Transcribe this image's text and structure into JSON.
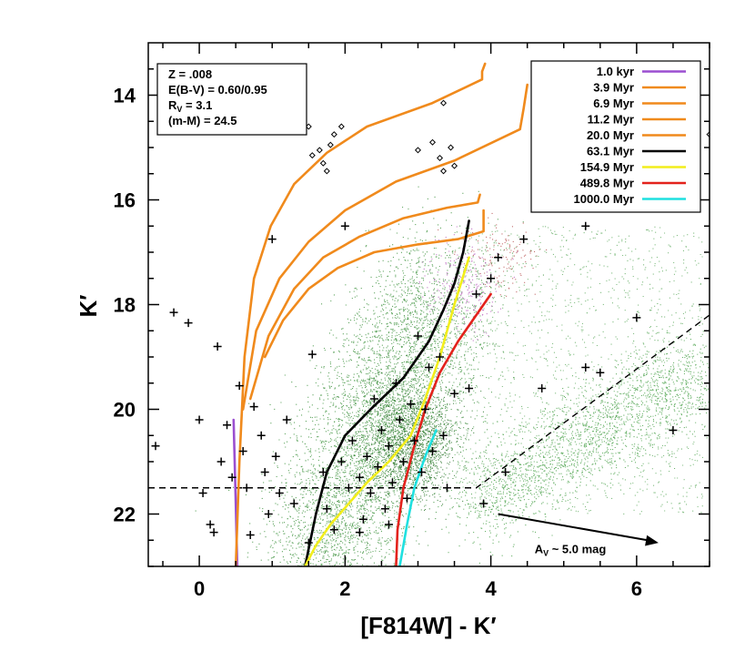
{
  "chart_data": {
    "type": "scatter",
    "title": "",
    "xlabel": "[F814W] - K′",
    "ylabel": "K′",
    "xlim": [
      -0.7,
      7.0
    ],
    "ylim": [
      23.0,
      13.0
    ],
    "y_inverted": true,
    "x_ticks": [
      0,
      2,
      4,
      6
    ],
    "y_ticks": [
      14,
      16,
      18,
      20,
      22
    ],
    "info_box": {
      "lines": [
        "Z = .008",
        "E(B-V) = 0.60/0.95",
        "R",
        "(m-M) = 24.5"
      ],
      "rv_sub": "V",
      "rv_value": " = 3.1"
    },
    "legend": {
      "position": "top-right",
      "entries": [
        {
          "label": "1.0 kyr",
          "color": "#9b4fd0"
        },
        {
          "label": "3.9 Myr",
          "color": "#f08a1c"
        },
        {
          "label": "6.9 Myr",
          "color": "#f08a1c"
        },
        {
          "label": "11.2 Myr",
          "color": "#f08a1c"
        },
        {
          "label": "20.0 Myr",
          "color": "#f08a1c"
        },
        {
          "label": "63.1 Myr",
          "color": "#000000"
        },
        {
          "label": "154.9 Myr",
          "color": "#f2ee1c"
        },
        {
          "label": "489.8 Myr",
          "color": "#e3221c"
        },
        {
          "label": "1000.0 Myr",
          "color": "#1fe0e0"
        }
      ]
    },
    "isochrones": [
      {
        "name": "1.0 kyr",
        "color": "#9b4fd0",
        "x": [
          0.47,
          0.5,
          0.52
        ],
        "y": [
          20.2,
          21.8,
          23.0
        ]
      },
      {
        "name": "3.9 Myr",
        "color": "#f08a1c",
        "x": [
          0.5,
          0.55,
          0.62,
          0.75,
          0.98,
          1.3,
          1.75,
          2.3,
          3.2,
          3.88,
          3.88,
          3.92
        ],
        "y": [
          23.0,
          21.0,
          19.0,
          17.5,
          16.5,
          15.7,
          15.1,
          14.6,
          14.15,
          13.7,
          13.55,
          13.4
        ]
      },
      {
        "name": "6.9 Myr",
        "color": "#f08a1c",
        "x": [
          0.6,
          0.78,
          1.1,
          1.5,
          2.0,
          2.7,
          3.5,
          4.4,
          4.45,
          4.5
        ],
        "y": [
          20.0,
          18.5,
          17.5,
          16.8,
          16.2,
          15.65,
          15.25,
          14.65,
          14.25,
          13.8
        ]
      },
      {
        "name": "11.2 Myr",
        "color": "#f08a1c",
        "x": [
          0.7,
          0.95,
          1.3,
          1.7,
          2.2,
          2.8,
          3.4,
          3.82,
          3.85
        ],
        "y": [
          19.8,
          18.6,
          17.7,
          17.1,
          16.7,
          16.35,
          16.15,
          16.05,
          15.9
        ]
      },
      {
        "name": "20.0 Myr",
        "color": "#f08a1c",
        "x": [
          0.9,
          1.15,
          1.5,
          1.9,
          2.4,
          3.0,
          3.55,
          3.9,
          3.9
        ],
        "y": [
          19.0,
          18.3,
          17.7,
          17.3,
          17.0,
          16.85,
          16.75,
          16.6,
          16.2
        ]
      },
      {
        "name": "63.1 Myr",
        "color": "#000000",
        "x": [
          1.45,
          1.6,
          1.75,
          2.0,
          2.35,
          2.8,
          3.15,
          3.35,
          3.5,
          3.62,
          3.7
        ],
        "y": [
          23.0,
          22.0,
          21.2,
          20.5,
          20.0,
          19.4,
          18.7,
          18.1,
          17.6,
          17.0,
          16.4
        ]
      },
      {
        "name": "154.9 Myr",
        "color": "#f2ee1c",
        "x": [
          1.45,
          1.6,
          1.8,
          2.05,
          2.3,
          2.6,
          2.9,
          3.1,
          3.3,
          3.5,
          3.7
        ],
        "y": [
          23.0,
          22.6,
          22.2,
          21.8,
          21.4,
          21.0,
          20.5,
          19.8,
          19.0,
          18.0,
          17.1
        ]
      },
      {
        "name": "489.8 Myr",
        "color": "#e3221c",
        "x": [
          2.7,
          2.72,
          2.8,
          2.95,
          3.1,
          3.3,
          3.55,
          3.8,
          4.0
        ],
        "y": [
          23.0,
          22.3,
          21.5,
          20.7,
          20.0,
          19.3,
          18.7,
          18.2,
          17.8
        ]
      },
      {
        "name": "1000.0 Myr",
        "color": "#1fe0e0",
        "x": [
          2.75,
          2.85,
          2.95,
          3.1,
          3.25
        ],
        "y": [
          23.0,
          22.2,
          21.5,
          20.9,
          20.4
        ]
      }
    ],
    "completeness_limit": {
      "x": [
        -0.7,
        3.8,
        7.0
      ],
      "y": [
        21.5,
        21.5,
        18.2
      ],
      "style": "dashed"
    },
    "extinction_vector": {
      "x": [
        4.1,
        6.3
      ],
      "y": [
        22.0,
        22.55
      ],
      "label_main": "A",
      "label_sub": "V",
      "label_tail": " ~ 5.0 mag"
    },
    "star_markers": [
      {
        "x": -0.35,
        "y": 18.15
      },
      {
        "x": -0.15,
        "y": 18.35
      },
      {
        "x": -0.6,
        "y": 20.7
      },
      {
        "x": 0.05,
        "y": 21.6
      },
      {
        "x": 0.15,
        "y": 22.2
      },
      {
        "x": 0.2,
        "y": 22.35
      },
      {
        "x": 0.3,
        "y": 21.0
      },
      {
        "x": 0.38,
        "y": 20.3
      },
      {
        "x": 0.45,
        "y": 21.3
      },
      {
        "x": 0.55,
        "y": 19.55
      },
      {
        "x": 0.6,
        "y": 20.8
      },
      {
        "x": 0.65,
        "y": 21.5
      },
      {
        "x": 0.7,
        "y": 22.4
      },
      {
        "x": 0.75,
        "y": 19.95
      },
      {
        "x": 0.85,
        "y": 20.5
      },
      {
        "x": 0.9,
        "y": 21.2
      },
      {
        "x": 0.95,
        "y": 22.0
      },
      {
        "x": 1.0,
        "y": 16.75
      },
      {
        "x": 1.05,
        "y": 20.9
      },
      {
        "x": 1.1,
        "y": 21.6
      },
      {
        "x": 1.2,
        "y": 20.2
      },
      {
        "x": 1.3,
        "y": 21.8
      },
      {
        "x": 1.55,
        "y": 18.95
      },
      {
        "x": 1.7,
        "y": 21.2
      },
      {
        "x": 1.75,
        "y": 21.9
      },
      {
        "x": 1.85,
        "y": 22.3
      },
      {
        "x": 1.95,
        "y": 21.0
      },
      {
        "x": 2.0,
        "y": 16.5
      },
      {
        "x": 2.05,
        "y": 21.5
      },
      {
        "x": 2.1,
        "y": 20.6
      },
      {
        "x": 2.2,
        "y": 21.3
      },
      {
        "x": 2.25,
        "y": 22.1
      },
      {
        "x": 2.3,
        "y": 20.9
      },
      {
        "x": 2.35,
        "y": 21.6
      },
      {
        "x": 2.4,
        "y": 19.8
      },
      {
        "x": 2.45,
        "y": 21.1
      },
      {
        "x": 2.5,
        "y": 20.4
      },
      {
        "x": 2.55,
        "y": 21.9
      },
      {
        "x": 2.6,
        "y": 20.7
      },
      {
        "x": 2.65,
        "y": 21.4
      },
      {
        "x": 2.7,
        "y": 19.5
      },
      {
        "x": 2.75,
        "y": 20.2
      },
      {
        "x": 2.8,
        "y": 21.0
      },
      {
        "x": 2.85,
        "y": 21.7
      },
      {
        "x": 2.9,
        "y": 19.9
      },
      {
        "x": 2.95,
        "y": 20.6
      },
      {
        "x": 3.0,
        "y": 18.6
      },
      {
        "x": 3.05,
        "y": 21.2
      },
      {
        "x": 3.1,
        "y": 20.0
      },
      {
        "x": 3.15,
        "y": 19.2
      },
      {
        "x": 3.2,
        "y": 20.8
      },
      {
        "x": 3.3,
        "y": 19.0
      },
      {
        "x": 3.35,
        "y": 20.5
      },
      {
        "x": 3.4,
        "y": 21.5
      },
      {
        "x": 3.5,
        "y": 19.7
      },
      {
        "x": 3.7,
        "y": 19.6
      },
      {
        "x": 3.8,
        "y": 17.8
      },
      {
        "x": 3.9,
        "y": 21.8
      },
      {
        "x": 4.0,
        "y": 17.5
      },
      {
        "x": 4.1,
        "y": 17.1
      },
      {
        "x": 4.2,
        "y": 21.2
      },
      {
        "x": 4.45,
        "y": 16.75
      },
      {
        "x": 4.7,
        "y": 19.6
      },
      {
        "x": 5.3,
        "y": 19.2
      },
      {
        "x": 5.5,
        "y": 19.3
      },
      {
        "x": 5.3,
        "y": 16.5
      },
      {
        "x": 6.0,
        "y": 18.25
      },
      {
        "x": 6.5,
        "y": 20.4
      },
      {
        "x": 2.2,
        "y": 22.35
      },
      {
        "x": 2.6,
        "y": 22.2
      },
      {
        "x": 1.5,
        "y": 22.55
      },
      {
        "x": 0.0,
        "y": 20.2
      },
      {
        "x": 0.25,
        "y": 18.8
      }
    ],
    "diamond_markers": [
      {
        "x": 1.5,
        "y": 14.6
      },
      {
        "x": 1.55,
        "y": 15.15
      },
      {
        "x": 1.65,
        "y": 15.05
      },
      {
        "x": 1.7,
        "y": 15.3
      },
      {
        "x": 1.75,
        "y": 15.45
      },
      {
        "x": 1.8,
        "y": 14.95
      },
      {
        "x": 1.85,
        "y": 14.75
      },
      {
        "x": 1.95,
        "y": 14.6
      },
      {
        "x": 3.0,
        "y": 15.05
      },
      {
        "x": 3.2,
        "y": 14.9
      },
      {
        "x": 3.3,
        "y": 15.2
      },
      {
        "x": 3.35,
        "y": 15.45
      },
      {
        "x": 3.45,
        "y": 15.0
      },
      {
        "x": 3.35,
        "y": 14.15
      },
      {
        "x": 3.5,
        "y": 15.35
      },
      {
        "x": 7.0,
        "y": 14.75
      }
    ]
  }
}
